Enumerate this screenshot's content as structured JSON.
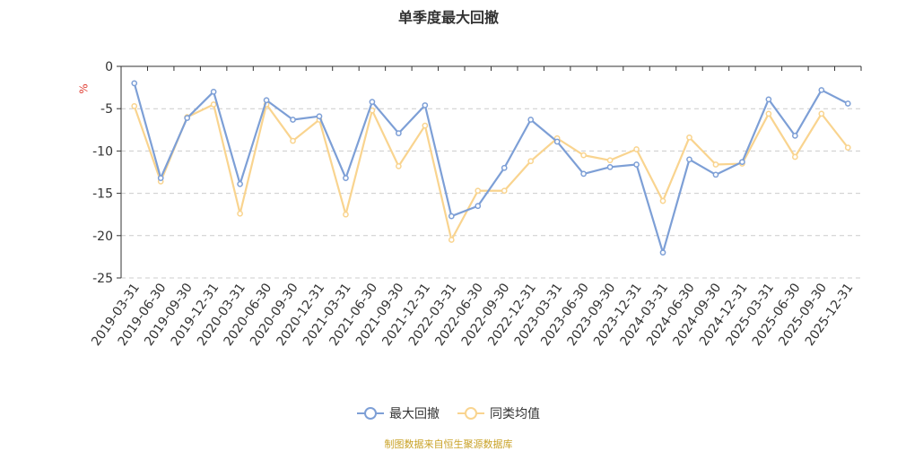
{
  "chart_data": {
    "type": "line",
    "title": "单季度最大回撤",
    "ylabel": "%",
    "xlabel": "",
    "ylim": [
      -25,
      0
    ],
    "yticks": [
      0,
      -5,
      -10,
      -15,
      -20,
      -25
    ],
    "grid": true,
    "legend_position": "bottom",
    "categories": [
      "2019-03-31",
      "2019-06-30",
      "2019-09-30",
      "2019-12-31",
      "2020-03-31",
      "2020-06-30",
      "2020-09-30",
      "2020-12-31",
      "2021-03-31",
      "2021-06-30",
      "2021-09-30",
      "2021-12-31",
      "2022-03-31",
      "2022-06-30",
      "2022-09-30",
      "2022-12-31",
      "2023-03-31",
      "2023-06-30",
      "2023-09-30",
      "2023-12-31",
      "2024-03-31",
      "2024-06-30",
      "2024-09-30",
      "2024-12-31",
      "2025-03-31",
      "2025-06-30",
      "2025-09-30",
      "2025-12-31"
    ],
    "series": [
      {
        "name": "最大回撤",
        "color": "#7d9fd6",
        "values": [
          -2.0,
          -13.2,
          -6.1,
          -3.0,
          -13.9,
          -4.0,
          -6.3,
          -5.9,
          -13.2,
          -4.2,
          -7.9,
          -4.6,
          -17.7,
          -16.5,
          -12.0,
          -6.3,
          -8.9,
          -12.7,
          -11.9,
          -11.6,
          -22.0,
          -11.0,
          -12.8,
          -11.3,
          -3.9,
          -8.2,
          -2.8,
          -4.4
        ]
      },
      {
        "name": "同类均值",
        "color": "#f9d48f",
        "values": [
          -4.7,
          -13.6,
          -6.0,
          -4.5,
          -17.4,
          -4.5,
          -8.8,
          -6.3,
          -17.5,
          -5.2,
          -11.8,
          -7.0,
          -20.5,
          -14.7,
          -14.7,
          -11.2,
          -8.5,
          -10.5,
          -11.1,
          -9.8,
          -15.9,
          -8.4,
          -11.6,
          -11.5,
          -5.6,
          -10.7,
          -5.6,
          -9.6
        ]
      }
    ]
  },
  "unit_label": "%",
  "source_note": "制图数据来自恒生聚源数据库"
}
